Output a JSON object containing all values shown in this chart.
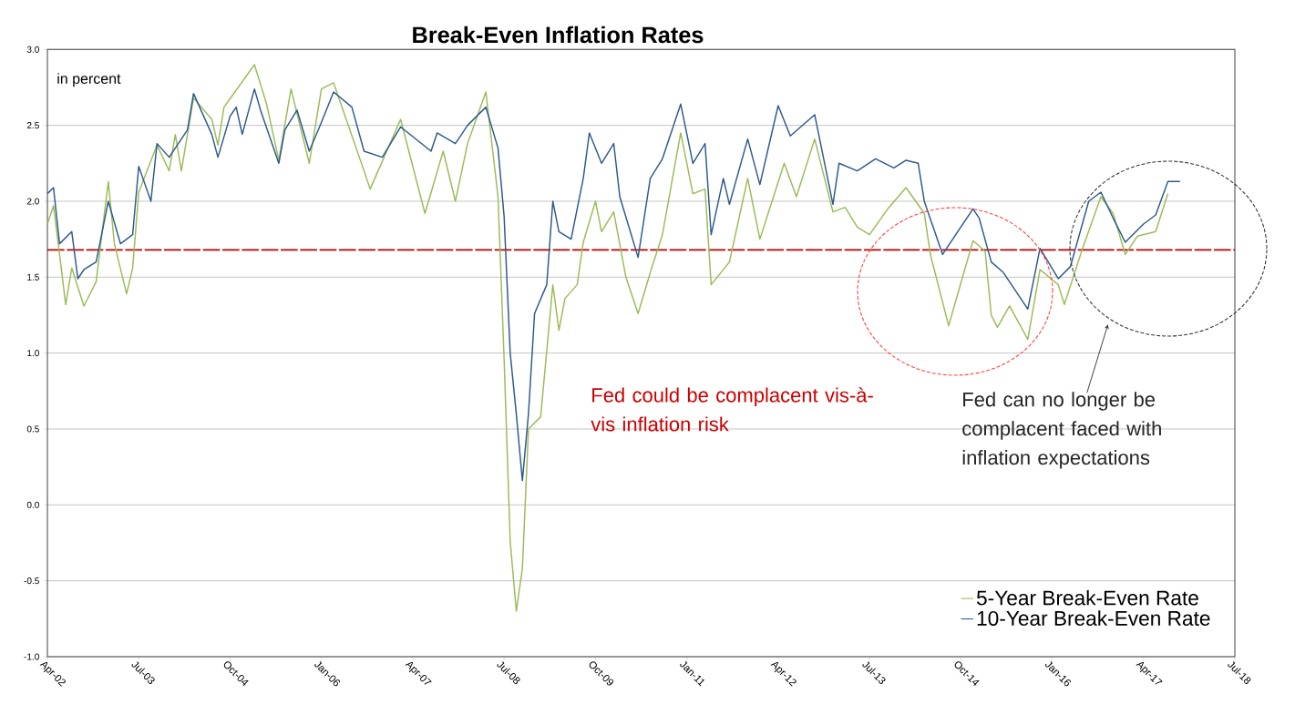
{
  "chart_data": {
    "type": "line",
    "title": "Break-Even Inflation Rates",
    "annotations": [
      "in percent",
      "Fed could be complacent vis-à-vis inflation risk",
      "Fed can no longer be complacent faced with inflation expectations"
    ],
    "series": [
      {
        "name": "5-Year Break-Even Rate",
        "color": "#9bbb59",
        "x": [
          "2002-04",
          "2002-05",
          "2002-06",
          "2002-07",
          "2002-08",
          "2002-10",
          "2002-12",
          "2003-02",
          "2003-03",
          "2003-05",
          "2003-06",
          "2003-07",
          "2003-10",
          "2003-12",
          "2004-01",
          "2004-02",
          "2004-04",
          "2004-07",
          "2004-08",
          "2004-09",
          "2005-02",
          "2005-04",
          "2005-06",
          "2005-08",
          "2005-11",
          "2006-01",
          "2006-03",
          "2006-08",
          "2006-09",
          "2007-02",
          "2007-06",
          "2007-09",
          "2007-11",
          "2008-01",
          "2008-04",
          "2008-06",
          "2008-07",
          "2008-08",
          "2008-09",
          "2008-10",
          "2008-11",
          "2009-01",
          "2009-03",
          "2009-04",
          "2009-05",
          "2009-07",
          "2009-08",
          "2009-10",
          "2009-11",
          "2010-01",
          "2010-03",
          "2010-05",
          "2010-07",
          "2010-09",
          "2010-11",
          "2010-12",
          "2011-02",
          "2011-04",
          "2011-05",
          "2011-08",
          "2011-11",
          "2012-01",
          "2012-05",
          "2012-07",
          "2012-10",
          "2013-01",
          "2013-03",
          "2013-05",
          "2013-07",
          "2013-10",
          "2014-01",
          "2014-04",
          "2014-05",
          "2014-08",
          "2014-09",
          "2014-12",
          "2015-02",
          "2015-03",
          "2015-04",
          "2015-06",
          "2015-09",
          "2015-11",
          "2016-02",
          "2016-03",
          "2016-06",
          "2016-09",
          "2016-11",
          "2017-01",
          "2017-03",
          "2017-06",
          "2017-08"
        ],
        "values": [
          1.85,
          1.97,
          1.65,
          1.32,
          1.56,
          1.31,
          1.47,
          2.13,
          1.72,
          1.39,
          1.56,
          2.06,
          2.37,
          2.2,
          2.44,
          2.2,
          2.68,
          2.54,
          2.37,
          2.62,
          2.9,
          2.64,
          2.27,
          2.74,
          2.25,
          2.74,
          2.78,
          2.2,
          2.08,
          2.54,
          1.92,
          2.33,
          2.0,
          2.38,
          2.72,
          2.03,
          0.96,
          -0.24,
          -0.7,
          -0.42,
          0.5,
          0.58,
          1.45,
          1.15,
          1.36,
          1.45,
          1.73,
          2.0,
          1.8,
          1.93,
          1.5,
          1.26,
          1.53,
          1.78,
          2.23,
          2.45,
          2.05,
          2.08,
          1.45,
          1.6,
          2.15,
          1.75,
          2.25,
          2.03,
          2.41,
          1.93,
          1.96,
          1.83,
          1.78,
          1.95,
          2.09,
          1.92,
          1.65,
          1.18,
          1.32,
          1.74,
          1.67,
          1.25,
          1.17,
          1.31,
          1.09,
          1.55,
          1.45,
          1.32,
          1.69,
          2.03,
          1.92,
          1.65,
          1.77,
          1.8,
          2.05
        ]
      },
      {
        "name": "10-Year Break-Even Rate",
        "color": "#2e5a8c",
        "x": [
          "2002-04",
          "2002-05",
          "2002-06",
          "2002-08",
          "2002-09",
          "2002-10",
          "2002-12",
          "2003-02",
          "2003-04",
          "2003-06",
          "2003-07",
          "2003-09",
          "2003-10",
          "2003-12",
          "2004-03",
          "2004-04",
          "2004-07",
          "2004-08",
          "2004-10",
          "2004-11",
          "2004-12",
          "2005-02",
          "2005-03",
          "2005-06",
          "2005-07",
          "2005-09",
          "2005-11",
          "2006-01",
          "2006-03",
          "2006-06",
          "2006-08",
          "2006-11",
          "2007-02",
          "2007-07",
          "2007-08",
          "2007-11",
          "2008-01",
          "2008-04",
          "2008-06",
          "2008-07",
          "2008-08",
          "2008-09",
          "2008-10",
          "2008-11",
          "2008-12",
          "2009-02",
          "2009-03",
          "2009-04",
          "2009-06",
          "2009-08",
          "2009-09",
          "2009-11",
          "2010-01",
          "2010-02",
          "2010-05",
          "2010-07",
          "2010-09",
          "2010-12",
          "2011-02",
          "2011-04",
          "2011-05",
          "2011-07",
          "2011-08",
          "2011-11",
          "2012-01",
          "2012-04",
          "2012-06",
          "2012-10",
          "2013-01",
          "2013-02",
          "2013-05",
          "2013-08",
          "2013-11",
          "2014-01",
          "2014-03",
          "2014-04",
          "2014-07",
          "2014-12",
          "2015-01",
          "2015-03",
          "2015-05",
          "2015-09",
          "2015-11",
          "2016-02",
          "2016-04",
          "2016-07",
          "2016-09",
          "2016-11",
          "2017-01",
          "2017-04",
          "2017-06",
          "2017-08",
          "2017-10"
        ],
        "values": [
          2.05,
          2.09,
          1.72,
          1.8,
          1.49,
          1.55,
          1.6,
          2.0,
          1.72,
          1.78,
          2.23,
          2.0,
          2.38,
          2.29,
          2.47,
          2.71,
          2.44,
          2.29,
          2.56,
          2.62,
          2.44,
          2.74,
          2.6,
          2.25,
          2.47,
          2.6,
          2.33,
          2.52,
          2.72,
          2.62,
          2.33,
          2.29,
          2.49,
          2.33,
          2.45,
          2.38,
          2.5,
          2.62,
          2.35,
          1.9,
          1.0,
          0.6,
          0.16,
          0.6,
          1.26,
          1.45,
          2.0,
          1.8,
          1.75,
          2.15,
          2.45,
          2.25,
          2.38,
          2.03,
          1.63,
          2.15,
          2.28,
          2.64,
          2.25,
          2.38,
          1.78,
          2.15,
          1.98,
          2.41,
          2.11,
          2.63,
          2.43,
          2.57,
          1.98,
          2.25,
          2.2,
          2.28,
          2.22,
          2.27,
          2.25,
          2.0,
          1.65,
          1.95,
          1.89,
          1.6,
          1.53,
          1.29,
          1.69,
          1.49,
          1.57,
          2.0,
          2.06,
          1.89,
          1.73,
          1.85,
          1.91,
          2.13,
          2.13
        ]
      }
    ],
    "xlim": [
      "2002-04",
      "2018-07"
    ],
    "xticks": [
      {
        "value": "2002-04",
        "label": "Apr-02"
      },
      {
        "value": "2003-07",
        "label": "Jul-03"
      },
      {
        "value": "2004-10",
        "label": "Oct-04"
      },
      {
        "value": "2006-01",
        "label": "Jan-06"
      },
      {
        "value": "2007-04",
        "label": "Apr-07"
      },
      {
        "value": "2008-07",
        "label": "Jul-08"
      },
      {
        "value": "2009-10",
        "label": "Oct-09"
      },
      {
        "value": "2011-01",
        "label": "Jan-11"
      },
      {
        "value": "2012-04",
        "label": "Apr-12"
      },
      {
        "value": "2013-07",
        "label": "Jul-13"
      },
      {
        "value": "2014-10",
        "label": "Oct-14"
      },
      {
        "value": "2016-01",
        "label": "Jan-16"
      },
      {
        "value": "2017-04",
        "label": "Apr-17"
      },
      {
        "value": "2018-07",
        "label": "Jul-18"
      }
    ],
    "ylim": [
      -1,
      3
    ],
    "yticks": [
      {
        "value": -1,
        "label": "-1.0"
      },
      {
        "value": -0.5,
        "label": "-0.5"
      },
      {
        "value": 0,
        "label": "0.0"
      },
      {
        "value": 0.5,
        "label": "0.5"
      },
      {
        "value": 1,
        "label": "1.0"
      },
      {
        "value": 1.5,
        "label": "1.5"
      },
      {
        "value": 2,
        "label": "2.0"
      },
      {
        "value": 2.5,
        "label": "2.5"
      },
      {
        "value": 3,
        "label": "3.0"
      }
    ],
    "ref_lines": [
      {
        "axis": "y",
        "value": 1.68,
        "color": "#c00000",
        "line_style": "dashed"
      }
    ],
    "grid": "y",
    "legend": "bottom right"
  }
}
